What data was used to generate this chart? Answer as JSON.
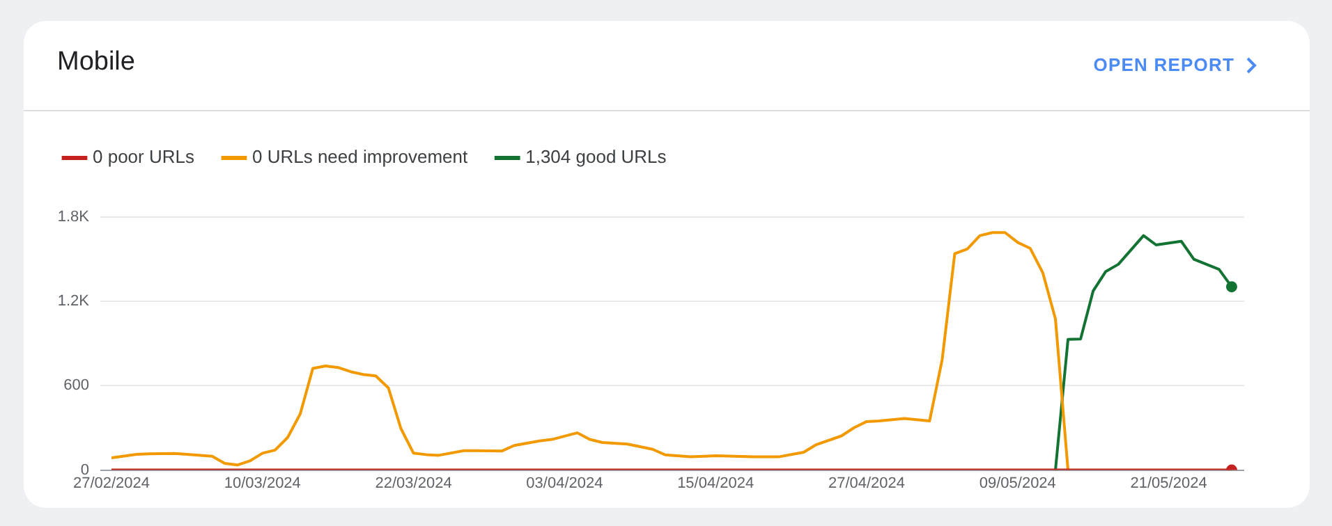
{
  "chart_data": {
    "type": "line",
    "title": "Mobile",
    "annotations": [
      "OPEN REPORT"
    ],
    "xlim": [
      "2024-02-27",
      "2024-05-27"
    ],
    "xticks": [
      {
        "value": "2024-02-27",
        "label": "27/02/2024"
      },
      {
        "value": "2024-03-10",
        "label": "10/03/2024"
      },
      {
        "value": "2024-03-22",
        "label": "22/03/2024"
      },
      {
        "value": "2024-04-03",
        "label": "03/04/2024"
      },
      {
        "value": "2024-04-15",
        "label": "15/04/2024"
      },
      {
        "value": "2024-04-27",
        "label": "27/04/2024"
      },
      {
        "value": "2024-05-09",
        "label": "09/05/2024"
      },
      {
        "value": "2024-05-21",
        "label": "21/05/2024"
      }
    ],
    "ylim": [
      0,
      1800
    ],
    "yticks": [
      0,
      600,
      {
        "value": 1200,
        "label": "1.2K"
      },
      {
        "value": 1800,
        "label": "1.8K"
      }
    ],
    "grid": "y",
    "legend": "top left",
    "line_style": "solid",
    "series": [
      {
        "name": "0 poor URLs",
        "color": "#c5221f",
        "x": [
          "2024-02-27",
          "2024-05-26"
        ],
        "values": [
          0,
          0
        ]
      },
      {
        "name": "0 URLs need improvement",
        "color": "#f29900",
        "x": [
          "2024-02-27",
          "2024-02-29",
          "2024-03-01",
          "2024-03-03",
          "2024-03-04",
          "2024-03-06",
          "2024-03-07",
          "2024-03-08",
          "2024-03-09",
          "2024-03-10",
          "2024-03-11",
          "2024-03-12",
          "2024-03-13",
          "2024-03-14",
          "2024-03-15",
          "2024-03-16",
          "2024-03-17",
          "2024-03-18",
          "2024-03-19",
          "2024-03-20",
          "2024-03-21",
          "2024-03-22",
          "2024-03-23",
          "2024-03-24",
          "2024-03-26",
          "2024-03-27",
          "2024-03-29",
          "2024-03-30",
          "2024-04-01",
          "2024-04-02",
          "2024-04-04",
          "2024-04-05",
          "2024-04-06",
          "2024-04-08",
          "2024-04-10",
          "2024-04-11",
          "2024-04-13",
          "2024-04-15",
          "2024-04-18",
          "2024-04-20",
          "2024-04-22",
          "2024-04-23",
          "2024-04-25",
          "2024-04-26",
          "2024-04-27",
          "2024-04-28",
          "2024-04-30",
          "2024-05-02",
          "2024-05-03",
          "2024-05-04",
          "2024-05-05",
          "2024-05-06",
          "2024-05-07",
          "2024-05-08",
          "2024-05-09",
          "2024-05-10",
          "2024-05-11",
          "2024-05-12",
          "2024-05-13"
        ],
        "values": [
          87,
          112,
          115,
          118,
          112,
          98,
          47,
          36,
          65,
          120,
          142,
          232,
          400,
          723,
          741,
          730,
          700,
          680,
          670,
          585,
          295,
          120,
          110,
          105,
          138,
          138,
          135,
          175,
          207,
          218,
          265,
          218,
          196,
          185,
          148,
          108,
          94,
          102,
          94,
          94,
          127,
          181,
          243,
          301,
          345,
          349,
          367,
          349,
          785,
          1540,
          1573,
          1668,
          1690,
          1690,
          1620,
          1577,
          1403,
          1076,
          0
        ]
      },
      {
        "name": "1,304 good URLs",
        "color": "#137333",
        "x": [
          "2024-05-12",
          "2024-05-13",
          "2024-05-14",
          "2024-05-15",
          "2024-05-16",
          "2024-05-17",
          "2024-05-19",
          "2024-05-20",
          "2024-05-22",
          "2024-05-23",
          "2024-05-25",
          "2024-05-26"
        ],
        "values": [
          0,
          930,
          933,
          1275,
          1413,
          1464,
          1668,
          1602,
          1628,
          1500,
          1428,
          1304
        ]
      }
    ]
  }
}
